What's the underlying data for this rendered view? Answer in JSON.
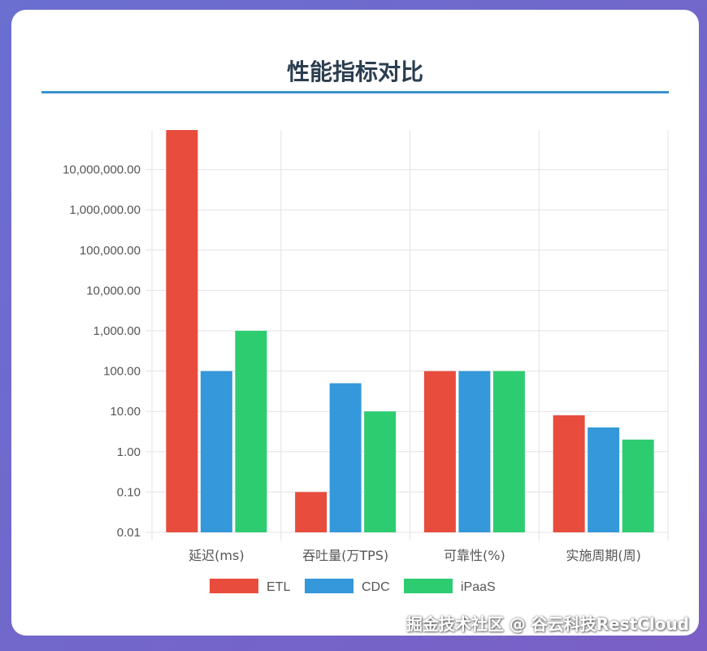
{
  "page": {
    "title": "性能指标对比",
    "watermark": "掘金技术社区 @ 谷云科技RestCloud"
  },
  "colors": {
    "etl": "#e74c3c",
    "cdc": "#3498db",
    "ipaas": "#2ecc71",
    "grid": "#e3e3e3",
    "axis_text": "#555555",
    "title_rule": "#3a93d2"
  },
  "chart_data": {
    "type": "bar",
    "title": "性能指标对比",
    "scale": "log",
    "categories": [
      "延迟(ms)",
      "吞吐量(万TPS)",
      "可靠性(%)",
      "实施周期(周)"
    ],
    "series": [
      {
        "name": "ETL",
        "color": "#e74c3c",
        "values": [
          100000000,
          0.1,
          100,
          8
        ]
      },
      {
        "name": "CDC",
        "color": "#3498db",
        "values": [
          100,
          50,
          100,
          4
        ]
      },
      {
        "name": "iPaaS",
        "color": "#2ecc71",
        "values": [
          1000,
          10,
          100,
          2
        ]
      }
    ],
    "y_ticks": [
      "0.01",
      "0.10",
      "1.00",
      "10.00",
      "100.00",
      "1,000.00",
      "10,000.00",
      "100,000.00",
      "1,000,000.00",
      "10,000,000.00"
    ],
    "ylim": [
      0.01,
      100000000
    ],
    "grid": true,
    "legend": "bottom"
  }
}
